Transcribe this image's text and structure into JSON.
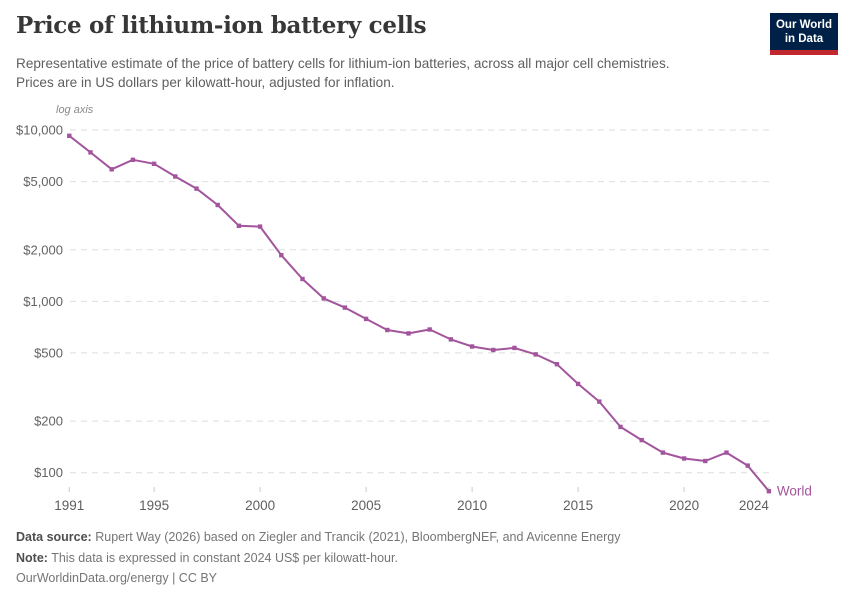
{
  "header": {
    "title": "Price of lithium-ion battery cells",
    "subtitle_line1": "Representative estimate of the price of battery cells for lithium-ion batteries, across all major cell chemistries.",
    "subtitle_line2": "Prices are in US dollars per kilowatt-hour, adjusted for inflation.",
    "logo": {
      "line1": "Our World",
      "line2": "in Data"
    }
  },
  "chart_data": {
    "type": "line",
    "title": "Price of lithium-ion battery cells",
    "y_scale": "log",
    "log_axis_label": "log axis",
    "grid": true,
    "x": [
      1991,
      1992,
      1993,
      1994,
      1995,
      1996,
      1997,
      1998,
      1999,
      2000,
      2001,
      2002,
      2003,
      2004,
      2005,
      2006,
      2007,
      2008,
      2009,
      2010,
      2011,
      2012,
      2013,
      2014,
      2015,
      2016,
      2017,
      2018,
      2019,
      2020,
      2021,
      2022,
      2023,
      2024
    ],
    "series": [
      {
        "name": "World",
        "values": [
          9250,
          7400,
          5900,
          6700,
          6350,
          5350,
          4550,
          3650,
          2760,
          2730,
          1860,
          1350,
          1040,
          920,
          790,
          680,
          650,
          685,
          600,
          545,
          520,
          535,
          490,
          430,
          330,
          260,
          185,
          155,
          131,
          121,
          117,
          131,
          110,
          78
        ]
      }
    ],
    "x_ticks": [
      1991,
      1995,
      2000,
      2005,
      2010,
      2015,
      2020,
      2024
    ],
    "y_ticks": [
      10000,
      5000,
      2000,
      1000,
      500,
      200,
      100
    ],
    "y_tick_labels": [
      "$10,000",
      "$5,000",
      "$2,000",
      "$1,000",
      "$500",
      "$200",
      "$100"
    ],
    "ylim": [
      75,
      10000
    ],
    "xlabel": "",
    "ylabel": "",
    "legend_position": "line-end",
    "line_color": "#a2559c"
  },
  "footer": {
    "data_source_label": "Data source:",
    "data_source": "Rupert Way (2026) based on Ziegler and Trancik (2021), BloombergNEF, and Avicenne Energy",
    "note_label": "Note:",
    "note": "This data is expressed in constant 2024 US$ per kilowatt-hour.",
    "url_line": "OurWorldinData.org/energy | CC BY"
  },
  "colors": {
    "series_line": "#a2559c",
    "logo_background": "#002147",
    "logo_accent": "#c0282d",
    "gridline": "#dedede",
    "axis_text": "#636363"
  }
}
